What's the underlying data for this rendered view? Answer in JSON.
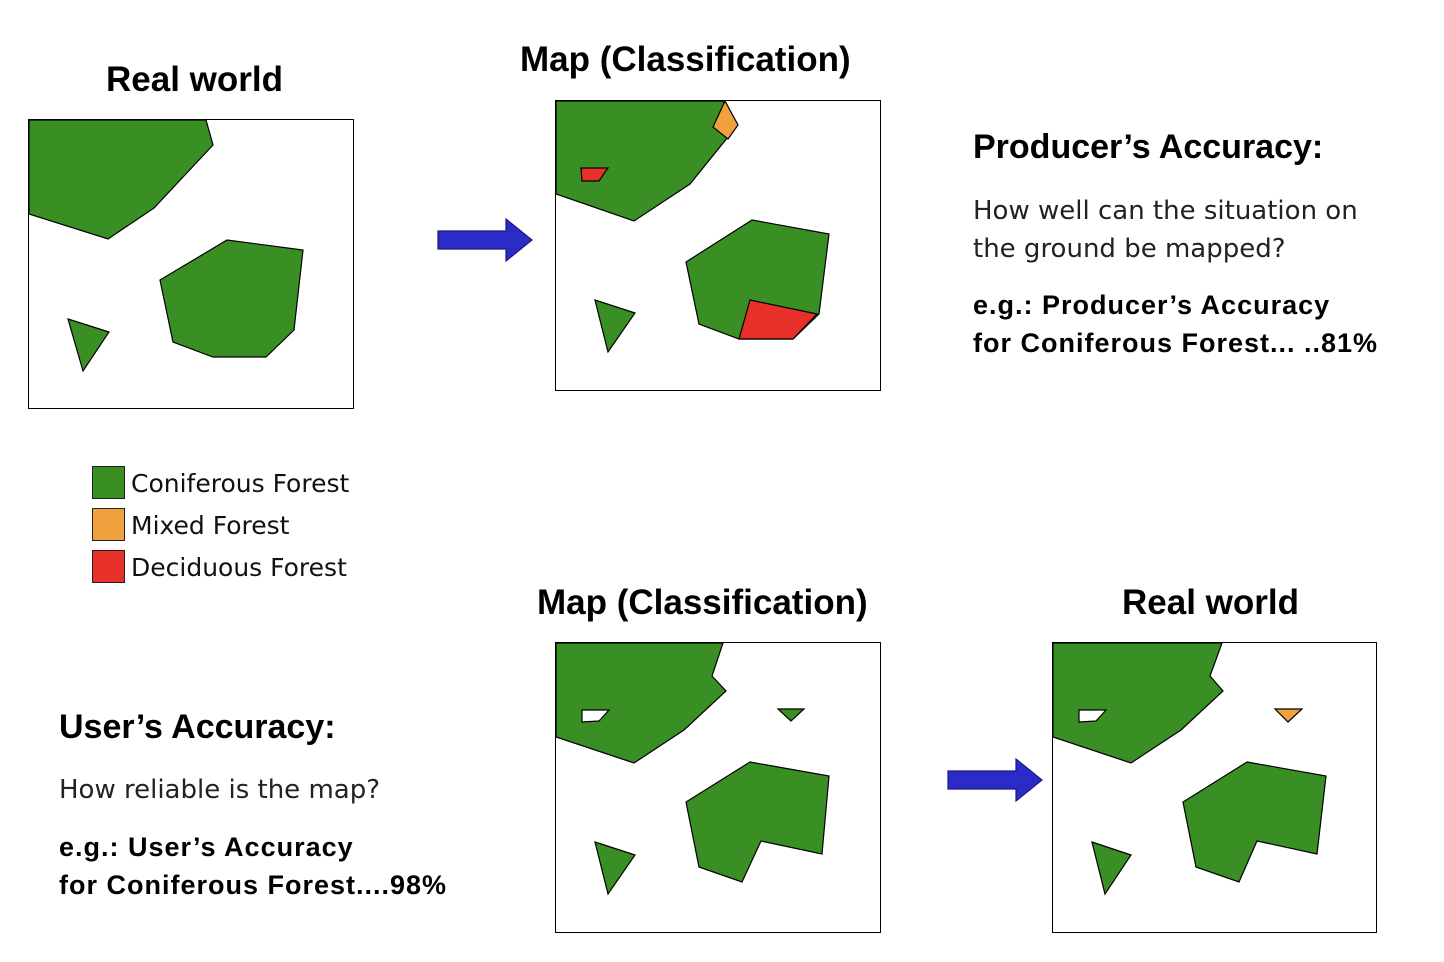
{
  "colors": {
    "coniferous": "#3a8f24",
    "mixed": "#f0a03c",
    "deciduous": "#e8302a",
    "arrow": "#2b2bc8"
  },
  "top": {
    "real_world_title": "Real world",
    "map_title": "Map (Classification)"
  },
  "bottom": {
    "map_title": "Map (Classification)",
    "real_world_title": "Real world"
  },
  "producers": {
    "heading": "Producer’s Accuracy:",
    "question_line1": "How well can the situation on",
    "question_line2": "the ground be mapped?",
    "example_line1": "e.g.: Producer’s Accuracy",
    "example_line2": "for Coniferous Forest... ..81%"
  },
  "users": {
    "heading": "User’s Accuracy:",
    "question": "How reliable is the map?",
    "example_line1": "e.g.: User’s Accuracy",
    "example_line2": "for Coniferous Forest....98%"
  },
  "legend": [
    {
      "label": "Coniferous Forest",
      "color": "#3a8f24"
    },
    {
      "label": "Mixed Forest",
      "color": "#f0a03c"
    },
    {
      "label": "Deciduous Forest",
      "color": "#e8302a"
    }
  ]
}
